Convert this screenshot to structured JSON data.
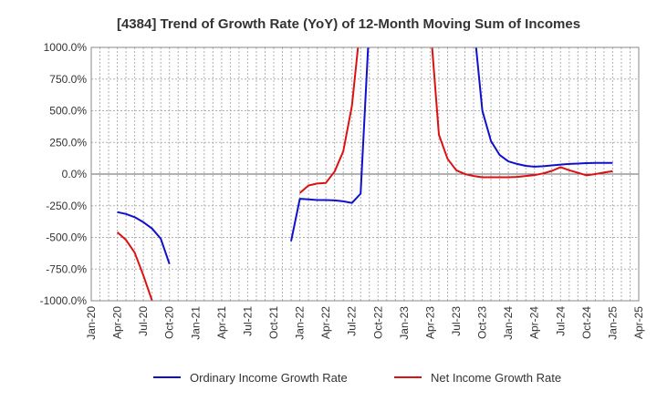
{
  "chart_data": {
    "type": "line",
    "title": "[4384]  Trend of Growth Rate (YoY) of 12-Month Moving Sum of Incomes",
    "xlabel": "",
    "ylabel": "",
    "ylim": [
      -1000,
      1000
    ],
    "y_ticks": [
      1000,
      750,
      500,
      250,
      0,
      -250,
      -500,
      -750,
      -1000
    ],
    "y_tick_labels": [
      "1000.0%",
      "750.0%",
      "500.0%",
      "250.0%",
      "0.0%",
      "-250.0%",
      "-500.0%",
      "-750.0%",
      "-1000.0%"
    ],
    "x_tick_labels": [
      "Jan-20",
      "Apr-20",
      "Jul-20",
      "Oct-20",
      "Jan-21",
      "Apr-21",
      "Jul-21",
      "Oct-21",
      "Jan-22",
      "Apr-22",
      "Jul-22",
      "Oct-22",
      "Jan-23",
      "Apr-23",
      "Jul-23",
      "Oct-23",
      "Jan-24",
      "Apr-24",
      "Jul-24",
      "Oct-24",
      "Jan-25",
      "Apr-25"
    ],
    "grid": true,
    "legend_position": "bottom",
    "series": [
      {
        "name": "Ordinary Income Growth Rate",
        "color": "#1010cc",
        "points": [
          [
            "2020-04",
            -300
          ],
          [
            "2020-05",
            -315
          ],
          [
            "2020-06",
            -340
          ],
          [
            "2020-07",
            -380
          ],
          [
            "2020-08",
            -430
          ],
          [
            "2020-09",
            -510
          ],
          [
            "2020-10",
            -710
          ],
          null,
          [
            "2021-12",
            -530
          ],
          [
            "2022-01",
            -195
          ],
          [
            "2022-02",
            -200
          ],
          [
            "2022-03",
            -205
          ],
          [
            "2022-04",
            -205
          ],
          [
            "2022-05",
            -208
          ],
          [
            "2022-06",
            -215
          ],
          [
            "2022-07",
            -228
          ],
          [
            "2022-08",
            -155
          ],
          [
            "2022-09",
            1200
          ],
          null,
          [
            "2023-09",
            1200
          ],
          [
            "2023-10",
            500
          ],
          [
            "2023-11",
            260
          ],
          [
            "2023-12",
            150
          ],
          [
            "2024-01",
            100
          ],
          [
            "2024-02",
            80
          ],
          [
            "2024-03",
            65
          ],
          [
            "2024-04",
            58
          ],
          [
            "2024-05",
            62
          ],
          [
            "2024-06",
            68
          ],
          [
            "2024-07",
            75
          ],
          [
            "2024-08",
            80
          ],
          [
            "2024-09",
            83
          ],
          [
            "2024-10",
            86
          ],
          [
            "2024-11",
            88
          ],
          [
            "2024-12",
            88
          ],
          [
            "2025-01",
            88
          ]
        ]
      },
      {
        "name": "Net Income Growth Rate",
        "color": "#dd1111",
        "points": [
          [
            "2020-04",
            -460
          ],
          [
            "2020-05",
            -520
          ],
          [
            "2020-06",
            -620
          ],
          [
            "2020-07",
            -800
          ],
          [
            "2020-08",
            -1000
          ],
          null,
          [
            "2022-01",
            -150
          ],
          [
            "2022-02",
            -90
          ],
          [
            "2022-03",
            -75
          ],
          [
            "2022-04",
            -70
          ],
          [
            "2022-05",
            20
          ],
          [
            "2022-06",
            180
          ],
          [
            "2022-07",
            540
          ],
          [
            "2022-08",
            1200
          ],
          null,
          [
            "2023-04",
            1200
          ],
          [
            "2023-05",
            310
          ],
          [
            "2023-06",
            120
          ],
          [
            "2023-07",
            30
          ],
          [
            "2023-08",
            0
          ],
          [
            "2023-09",
            -15
          ],
          [
            "2023-10",
            -25
          ],
          [
            "2023-11",
            -25
          ],
          [
            "2023-12",
            -25
          ],
          [
            "2024-01",
            -25
          ],
          [
            "2024-02",
            -22
          ],
          [
            "2024-03",
            -15
          ],
          [
            "2024-04",
            -8
          ],
          [
            "2024-05",
            5
          ],
          [
            "2024-06",
            25
          ],
          [
            "2024-07",
            55
          ],
          [
            "2024-08",
            30
          ],
          [
            "2024-09",
            10
          ],
          [
            "2024-10",
            -10
          ],
          [
            "2024-11",
            0
          ],
          [
            "2024-12",
            12
          ],
          [
            "2025-01",
            22
          ]
        ]
      }
    ]
  }
}
